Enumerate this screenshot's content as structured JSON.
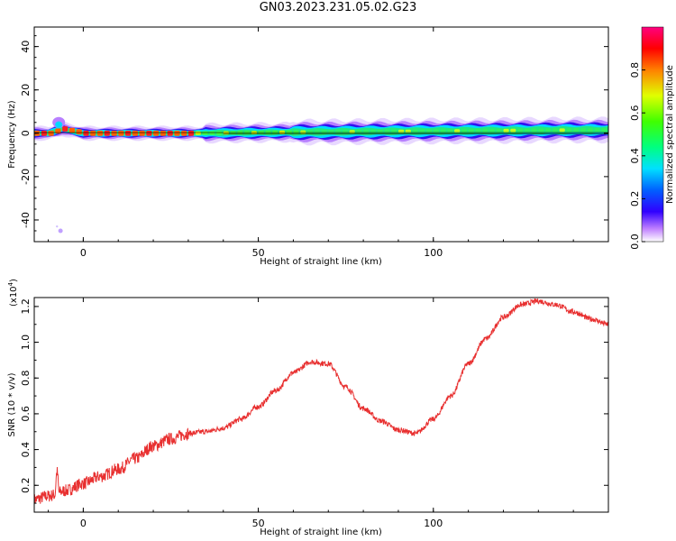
{
  "title": "GN03.2023.231.05.02.G23",
  "chart_data": [
    {
      "type": "heatmap",
      "xlabel": "Height of straight line (km)",
      "ylabel": "Frequency (Hz)",
      "xlim": [
        -14,
        150
      ],
      "ylim": [
        -50,
        49
      ],
      "x_ticks": [
        "0",
        "50",
        "100"
      ],
      "y_ticks": [
        "40",
        "20",
        "0",
        "-20",
        "-40"
      ],
      "colorbar": {
        "label": "Normalized spectral amplitude",
        "range": [
          0,
          1
        ],
        "ticks": [
          "0.0",
          "0.2",
          "0.4",
          "0.6",
          "0.8"
        ]
      },
      "description_points": [
        {
          "x": -10,
          "f": 0,
          "amp": 0.9
        },
        {
          "x": -6,
          "f": 2,
          "amp": 0.6
        },
        {
          "x": 0,
          "f": 0,
          "amp": 0.95
        },
        {
          "x": 30,
          "f": 0,
          "amp": 0.85
        },
        {
          "x": 60,
          "f": 0.5,
          "amp": 0.5
        },
        {
          "x": 100,
          "f": 1,
          "amp": 0.5
        },
        {
          "x": 140,
          "f": 1.5,
          "amp": 0.6
        }
      ]
    },
    {
      "type": "line",
      "xlabel": "Height of straight line (km)",
      "ylabel": "SNR (10 * v/v)",
      "y_multiplier": "(x10",
      "y_exponent": "4",
      "xlim": [
        -14,
        150
      ],
      "ylim": [
        0.05,
        1.25
      ],
      "x_ticks": [
        "0",
        "50",
        "100"
      ],
      "y_ticks": [
        "0.2",
        "0.4",
        "0.6",
        "0.8",
        "1.0",
        "1.2"
      ],
      "color": "#e83030",
      "x": [
        -14,
        -10,
        -5,
        0,
        5,
        10,
        15,
        20,
        25,
        30,
        35,
        40,
        45,
        50,
        55,
        60,
        65,
        70,
        75,
        80,
        85,
        90,
        95,
        100,
        105,
        110,
        115,
        120,
        125,
        130,
        135,
        140,
        145,
        150
      ],
      "y": [
        0.12,
        0.14,
        0.17,
        0.21,
        0.25,
        0.29,
        0.35,
        0.42,
        0.46,
        0.49,
        0.5,
        0.52,
        0.57,
        0.64,
        0.73,
        0.83,
        0.89,
        0.88,
        0.75,
        0.63,
        0.56,
        0.51,
        0.49,
        0.57,
        0.7,
        0.88,
        1.02,
        1.14,
        1.21,
        1.23,
        1.21,
        1.17,
        1.13,
        1.1
      ]
    }
  ]
}
